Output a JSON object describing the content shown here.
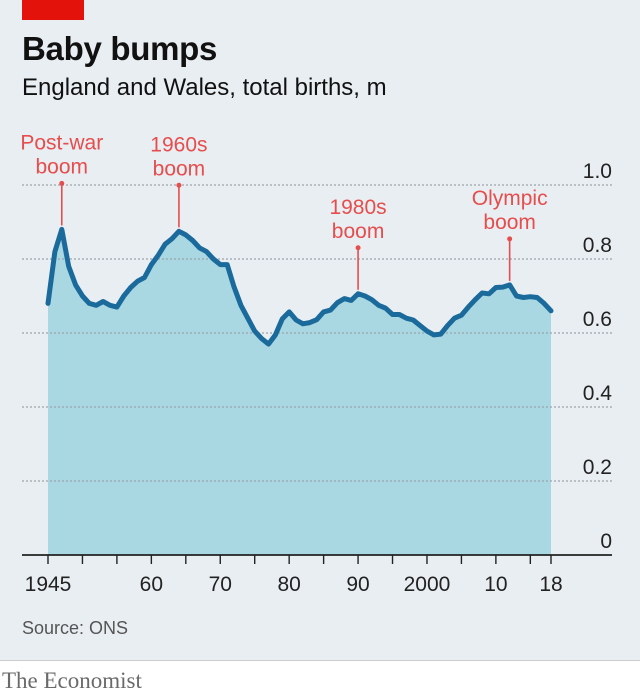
{
  "header": {
    "title": "Baby bumps",
    "subtitle": "England and Wales, total births, m"
  },
  "source": "Source: ONS",
  "brand": "The Economist",
  "colors": {
    "line": "#1b6a9c",
    "area": "#a9d7e2",
    "annotation": "#e64d4d",
    "grid": "#9aa4aa",
    "background": "#e9eef2",
    "tag": "#e3120b"
  },
  "chart_data": {
    "type": "area",
    "title": "Baby bumps",
    "subtitle": "England and Wales, total births, m",
    "xlim": [
      1945,
      2018
    ],
    "ylim": [
      0,
      1.0
    ],
    "yticks": [
      0,
      0.2,
      0.4,
      0.6,
      0.8,
      1.0
    ],
    "ytick_labels": [
      "0",
      "0.2",
      "0.4",
      "0.6",
      "0.8",
      "1.0"
    ],
    "xtick_labels": [
      {
        "year": 1945,
        "label": "1945"
      },
      {
        "year": 1960,
        "label": "60"
      },
      {
        "year": 1970,
        "label": "70"
      },
      {
        "year": 1980,
        "label": "80"
      },
      {
        "year": 1990,
        "label": "90"
      },
      {
        "year": 2000,
        "label": "2000"
      },
      {
        "year": 2010,
        "label": "10"
      },
      {
        "year": 2018,
        "label": "18"
      }
    ],
    "xminor_ticks": [
      1945,
      1950,
      1955,
      1960,
      1965,
      1970,
      1975,
      1980,
      1985,
      1990,
      1995,
      2000,
      2005,
      2010,
      2015,
      2018
    ],
    "grid": true,
    "series": [
      {
        "x": [
          1945,
          1946,
          1947,
          1948,
          1949,
          1950,
          1951,
          1952,
          1953,
          1954,
          1955,
          1956,
          1957,
          1958,
          1959,
          1960,
          1961,
          1962,
          1963,
          1964,
          1965,
          1966,
          1967,
          1968,
          1969,
          1970,
          1971,
          1972,
          1973,
          1974,
          1975,
          1976,
          1977,
          1978,
          1979,
          1980,
          1981,
          1982,
          1983,
          1984,
          1985,
          1986,
          1987,
          1988,
          1989,
          1990,
          1991,
          1992,
          1993,
          1994,
          1995,
          1996,
          1997,
          1998,
          1999,
          2000,
          2001,
          2002,
          2003,
          2004,
          2005,
          2006,
          2007,
          2008,
          2009,
          2010,
          2011,
          2012,
          2013,
          2014,
          2015,
          2016,
          2017,
          2018
        ],
        "values": [
          0.68,
          0.82,
          0.88,
          0.78,
          0.73,
          0.7,
          0.68,
          0.675,
          0.685,
          0.675,
          0.67,
          0.7,
          0.723,
          0.74,
          0.75,
          0.785,
          0.81,
          0.84,
          0.855,
          0.875,
          0.865,
          0.85,
          0.83,
          0.82,
          0.8,
          0.785,
          0.785,
          0.725,
          0.675,
          0.64,
          0.605,
          0.585,
          0.57,
          0.595,
          0.638,
          0.657,
          0.635,
          0.625,
          0.628,
          0.636,
          0.657,
          0.662,
          0.682,
          0.693,
          0.688,
          0.706,
          0.7,
          0.69,
          0.675,
          0.667,
          0.65,
          0.65,
          0.64,
          0.635,
          0.62,
          0.605,
          0.595,
          0.597,
          0.62,
          0.64,
          0.648,
          0.67,
          0.69,
          0.708,
          0.706,
          0.723,
          0.724,
          0.73,
          0.7,
          0.696,
          0.698,
          0.696,
          0.68,
          0.66
        ]
      }
    ],
    "annotations": [
      {
        "year": 1947,
        "value": 0.88,
        "lines": [
          "Post-war",
          "boom"
        ]
      },
      {
        "year": 1964,
        "value": 0.875,
        "lines": [
          "1960s",
          "boom"
        ]
      },
      {
        "year": 1990,
        "value": 0.706,
        "lines": [
          "1980s",
          "boom"
        ]
      },
      {
        "year": 2012,
        "value": 0.73,
        "lines": [
          "Olympic",
          "boom"
        ]
      }
    ]
  }
}
